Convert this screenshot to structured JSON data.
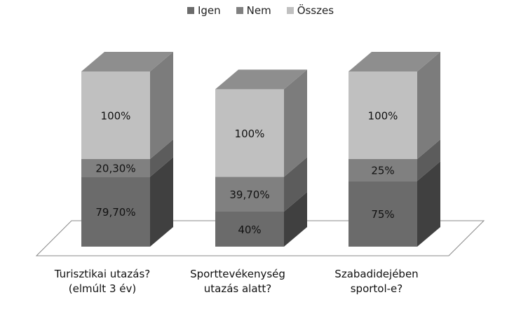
{
  "chart_data": {
    "type": "bar",
    "stacked": true,
    "three_d": true,
    "categories": [
      [
        "Turisztikai utazás?",
        "(elmúlt 3 év)"
      ],
      [
        "Sporttevékenység",
        "utazás alatt?"
      ],
      [
        "Szabadidejében",
        "sportol-e?"
      ]
    ],
    "series": [
      {
        "name": "Igen",
        "values": [
          79.7,
          40,
          75
        ],
        "labels": [
          "79,70%",
          "40%",
          "75%"
        ],
        "color": "#6b6b6b"
      },
      {
        "name": "Nem",
        "values": [
          20.3,
          39.7,
          25
        ],
        "labels": [
          "20,30%",
          "39,70%",
          "25%"
        ],
        "color": "#808080"
      },
      {
        "name": "Összes",
        "values": [
          100,
          100,
          100
        ],
        "labels": [
          "100%",
          "100%",
          "100%"
        ],
        "color": "#c0c0c0"
      }
    ],
    "legend": "top-center",
    "grid": false
  }
}
